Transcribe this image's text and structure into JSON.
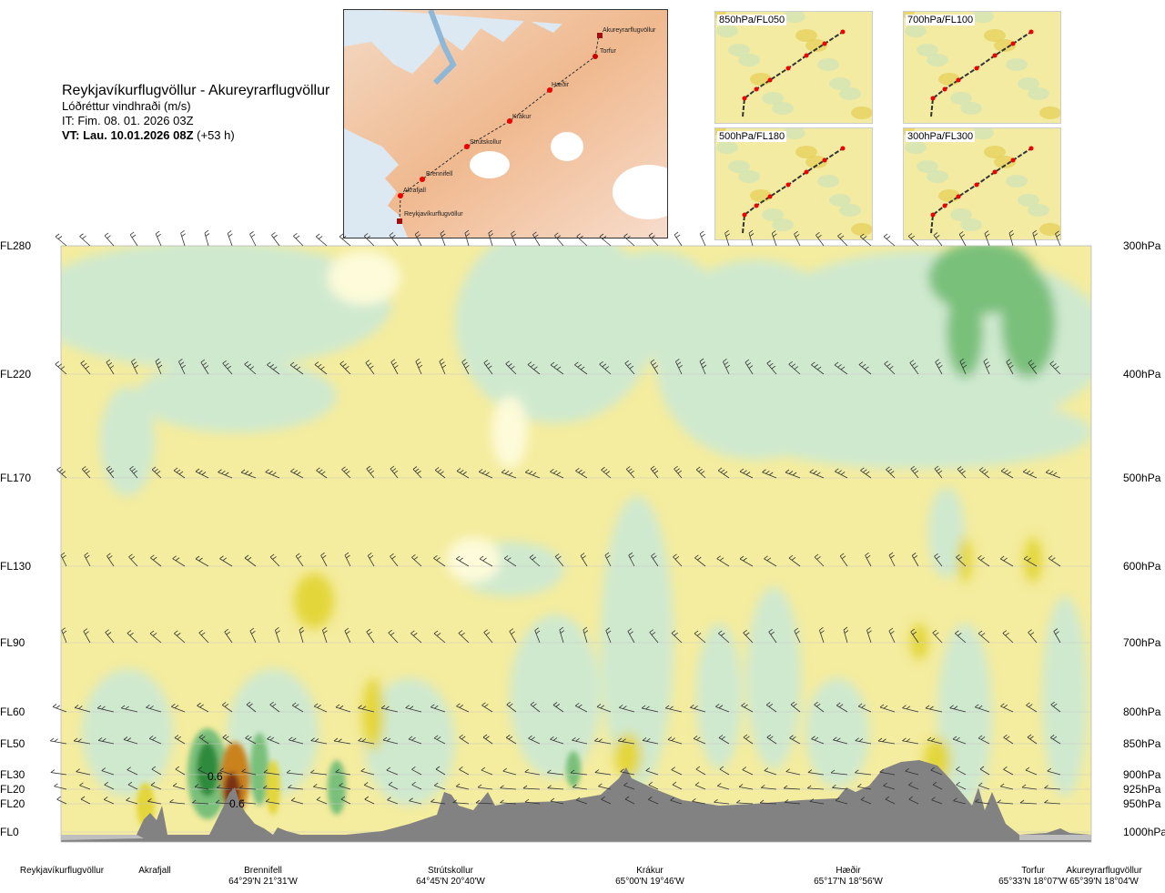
{
  "header": {
    "title": "Reykjavíkurflugvöllur - Akureyrarflugvöllur",
    "subtitle": "Lóðréttur vindhraði (m/s)",
    "it": "IT: Fim. 08. 01. 2026 03Z",
    "vt_bold": "VT: Lau. 10.01.2026 08Z",
    "vt_rest": " (+53 h)"
  },
  "route_map": {
    "points": [
      {
        "name": "Akureyrarflugvöllur"
      },
      {
        "name": "Torfur"
      },
      {
        "name": "Hæðir"
      },
      {
        "name": "Krákur"
      },
      {
        "name": "Strútskollur"
      },
      {
        "name": "Brennifell"
      },
      {
        "name": "Akrafjall"
      },
      {
        "name": "Reykjavíkurflugvöllur"
      }
    ]
  },
  "mini_maps": [
    {
      "label": "850hPa/FL050"
    },
    {
      "label": "700hPa/FL100"
    },
    {
      "label": "500hPa/FL180"
    },
    {
      "label": "300hPa/FL300"
    }
  ],
  "chart_data": {
    "type": "heatmap",
    "title": "Reykjavíkurflugvöllur - Akureyrarflugvöllur",
    "quantity": "Lóðréttur vindhraði (m/s)",
    "levels": [
      {
        "fl": "FL280",
        "hpa": "300hPa"
      },
      {
        "fl": "FL220",
        "hpa": "400hPa"
      },
      {
        "fl": "FL170",
        "hpa": "500hPa"
      },
      {
        "fl": "FL130",
        "hpa": "600hPa"
      },
      {
        "fl": "FL90",
        "hpa": "700hPa"
      },
      {
        "fl": "FL60",
        "hpa": "800hPa"
      },
      {
        "fl": "FL50",
        "hpa": "850hPa"
      },
      {
        "fl": "FL30",
        "hpa": "900hPa"
      },
      {
        "fl": "FL20",
        "hpa": "925hPa"
      },
      {
        "fl": "FL20",
        "hpa": "950hPa"
      },
      {
        "fl": "FL0",
        "hpa": "1000hPa"
      }
    ],
    "route_points": [
      {
        "name": "Reykjavíkurflugvöllur",
        "coord": ""
      },
      {
        "name": "Akrafjall",
        "coord": ""
      },
      {
        "name": "Brennifell",
        "coord": "64°29'N 21°31'W"
      },
      {
        "name": "Strútskollur",
        "coord": "64°45'N 20°40'W"
      },
      {
        "name": "Krákur",
        "coord": "65°00'N 19°46'W"
      },
      {
        "name": "Hæðir",
        "coord": "65°17'N 18°56'W"
      },
      {
        "name": "Torfur",
        "coord": "65°33'N 18°07'W"
      },
      {
        "name": "Akureyrarflugvöllur",
        "coord": "65°39'N 18°04'W"
      }
    ],
    "annotations": [
      "0.6",
      "0.6"
    ],
    "colors": {
      "strong_down": "#2e8b3c",
      "down": "#79c07a",
      "weak_down": "#cfe9cf",
      "neutral": "#fdfbd9",
      "weak_up": "#f4ec9e",
      "up": "#e3d63a",
      "strong_up": "#c9821a",
      "very_strong_up": "#7a3212",
      "terrain": "#828282"
    }
  }
}
